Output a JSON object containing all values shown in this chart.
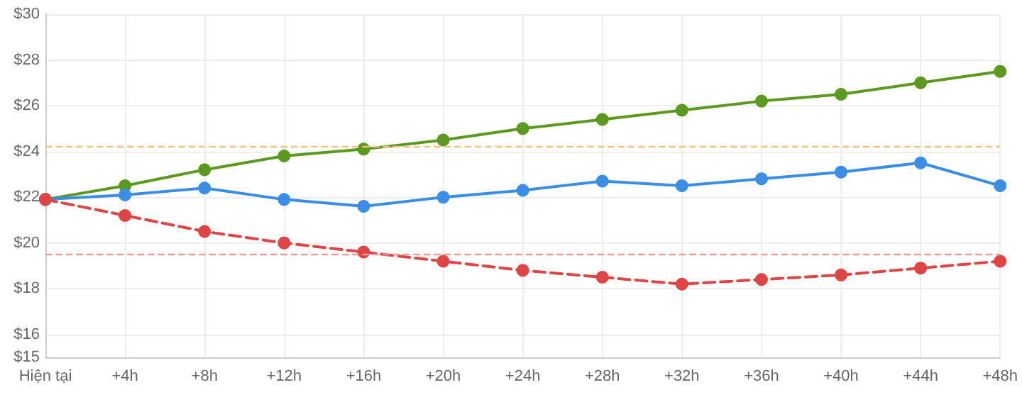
{
  "chart_data": {
    "type": "line",
    "categories": [
      "Hiện tại",
      "+4h",
      "+8h",
      "+12h",
      "+16h",
      "+20h",
      "+24h",
      "+28h",
      "+32h",
      "+36h",
      "+40h",
      "+44h",
      "+48h"
    ],
    "series": [
      {
        "color": "#5b9a1f",
        "line_style": "solid",
        "values": [
          21.9,
          22.5,
          23.2,
          23.8,
          24.1,
          24.5,
          25.0,
          25.4,
          25.8,
          26.2,
          26.5,
          27.0,
          27.5
        ]
      },
      {
        "color": "#3a8ee6",
        "line_style": "solid",
        "values": [
          21.9,
          22.1,
          22.4,
          21.9,
          21.6,
          22.0,
          22.3,
          22.7,
          22.5,
          22.8,
          23.1,
          23.5,
          22.5
        ]
      },
      {
        "color": "#e04545",
        "line_style": "dashed",
        "values": [
          21.9,
          21.2,
          20.5,
          20.0,
          19.6,
          19.2,
          18.8,
          18.5,
          18.2,
          18.4,
          18.6,
          18.9,
          19.2
        ]
      }
    ],
    "ylim": [
      15,
      30
    ],
    "yticks": [
      {
        "value": 15,
        "label": "$15"
      },
      {
        "value": 16,
        "label": "$16"
      },
      {
        "value": 18,
        "label": "$18"
      },
      {
        "value": 20,
        "label": "$20"
      },
      {
        "value": 22,
        "label": "$22"
      },
      {
        "value": 24,
        "label": "$24"
      },
      {
        "value": 26,
        "label": "$26"
      },
      {
        "value": 28,
        "label": "$28"
      },
      {
        "value": 30,
        "label": "$30"
      }
    ],
    "ref_lines": [
      {
        "axis": "y",
        "value": 24.2,
        "color": "#f5c27e",
        "line_style": "dashed"
      },
      {
        "axis": "y",
        "value": 19.5,
        "color": "#eb9a9a",
        "line_style": "dashed"
      }
    ],
    "grid": true,
    "marker": "circle"
  }
}
